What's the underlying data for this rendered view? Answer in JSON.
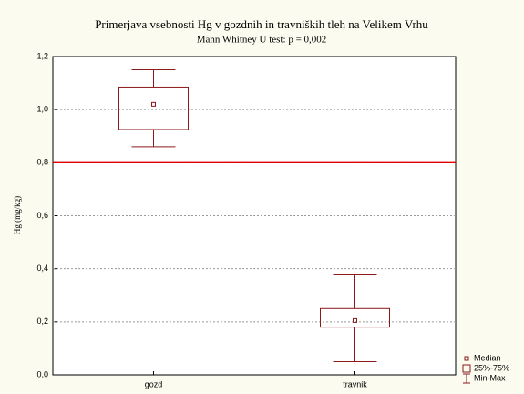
{
  "chart_data": {
    "type": "box",
    "title": "Primerjava vsebnosti Hg v gozdnih in travniških tleh na Velikem Vrhu",
    "subtitle": "Mann Whitney U test: p = 0,002",
    "y_label": "Hg (mg/kg)",
    "categories": [
      "gozd",
      "travnik"
    ],
    "boxes": [
      {
        "min": 0.86,
        "q1": 0.925,
        "median": 1.02,
        "q3": 1.085,
        "max": 1.15
      },
      {
        "min": 0.05,
        "q1": 0.18,
        "median": 0.205,
        "q3": 0.25,
        "max": 0.38
      }
    ],
    "color": "#8b1a1a",
    "reference_line": {
      "value": 0.8,
      "color": "#e00000"
    },
    "ylim": [
      0,
      1.2
    ],
    "yticks": [
      {
        "value": 0,
        "label": "0,0"
      },
      {
        "value": 0.2,
        "label": "0,2"
      },
      {
        "value": 0.4,
        "label": "0,4"
      },
      {
        "value": 0.6,
        "label": "0,6"
      },
      {
        "value": 0.8,
        "label": "0,8"
      },
      {
        "value": 1.0,
        "label": "1,0"
      },
      {
        "value": 1.2,
        "label": "1,2"
      }
    ],
    "grid": true,
    "legend": [
      "Median",
      "25%-75%",
      "Min-Max"
    ],
    "legend_position": "lower right"
  }
}
